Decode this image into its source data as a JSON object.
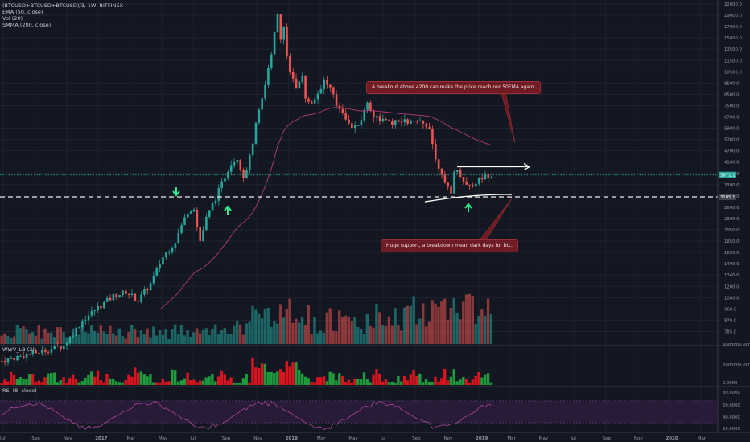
{
  "header": {
    "symbol": "(BTCUSD+BTCUSD+BTCUSD)/3, 1W, BITFINEX",
    "indicators": [
      "EMA (50, close)",
      "Vol (20)",
      "SMMA (200, close)"
    ]
  },
  "sub_panes": {
    "wwv_title": "WWV_LB (2)",
    "rsi_title": "RSI (8, close)"
  },
  "annotations": {
    "breakout_note": "A breakout above 4200 can make the price reach our 50EMA again.",
    "support_note": "Huge support, a breakdown mean dark days for btc."
  },
  "price_axis": {
    "ticks": [
      "22000.0",
      "19000.0",
      "17000.0",
      "15000.0",
      "13500.0",
      "11500.0",
      "10500.0",
      "9500.0",
      "8500.0",
      "7500.0",
      "6700.0",
      "5900.0",
      "5300.0",
      "4700.0",
      "4100.0",
      "3700.0",
      "3300.0",
      "2900.0",
      "2600.0",
      "2300.0",
      "2050.0",
      "1850.0",
      "1650.0",
      "1490.0",
      "1340.0",
      "1200.0",
      "1080.0",
      "960.0",
      "870.0",
      "785.0"
    ],
    "current_price": "3871.1",
    "support_label": "3105.1"
  },
  "wwv_axis": {
    "ticks": [
      "4000000.0000",
      "2000000.0000",
      "0.0000"
    ]
  },
  "rsi_axis": {
    "ticks": [
      "80.0000",
      "60.0000",
      "40.0000",
      "20.0000"
    ]
  },
  "time_axis": {
    "ticks": [
      "Jul",
      "Sep",
      "Nov",
      "2017",
      "Mar",
      "May",
      "Jul",
      "Sep",
      "Nov",
      "2018",
      "Mar",
      "May",
      "Jul",
      "Sep",
      "Nov",
      "2019",
      "Mar",
      "May",
      "Jul",
      "Sep",
      "Nov",
      "2020",
      "Mar"
    ]
  },
  "colors": {
    "background": "#131722",
    "up": "#26a69a",
    "down": "#ef5350",
    "ema": "#b53a7a",
    "current_price_line": "#26a69a",
    "callout_bg": "#6e1b24",
    "green_arrow": "#2ee889"
  },
  "chart_data": {
    "type": "candlestick",
    "timeframe": "1W",
    "y_scale": "log",
    "ylim": [
      700,
      22000
    ],
    "x_range": [
      "2016-06",
      "2020-03"
    ],
    "key_levels": {
      "support": 3105.1,
      "breakout": 4200,
      "last": 3871.1
    }
  }
}
